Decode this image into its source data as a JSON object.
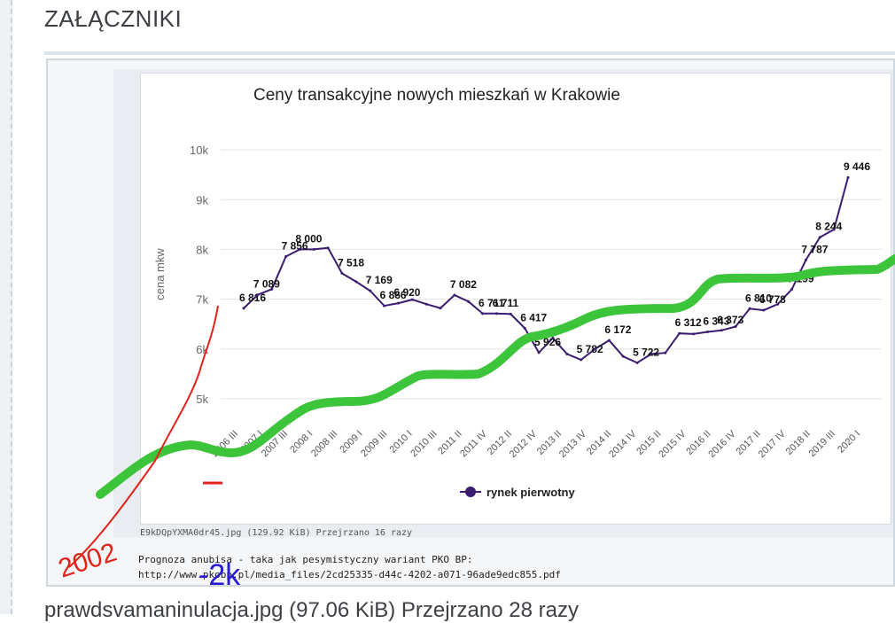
{
  "section_title": "ZAŁĄCZNIKI",
  "attachment": {
    "file_caption": "E9kDQpYXMA0dr45.jpg (129.92 KiB) Przejrzano 16 razy",
    "description_line1": "Prognoza anubisa - taka jak pesymistyczny wariant PKO BP:",
    "description_line2": "http://www.pkobp.pl/media_files/2cd25335-d44c-4202-a071-96ade9edc855.pdf"
  },
  "next_file_caption": "prawdsvamaninulacja.jpg (97.06 KiB) Przejrzano 28 razy",
  "annotations": {
    "year_note": "2002",
    "minus_note": "-2k",
    "red_color": "#e0231b",
    "green_color": "#3cc43a",
    "blue_color": "#2a1bd6"
  },
  "chart_data": {
    "type": "line",
    "title": "Ceny transakcyjne nowych mieszkań w Krakowie",
    "ylabel": "cena mkw",
    "xlabel": "",
    "ylim": [
      4500,
      10500
    ],
    "yticks": [
      5000,
      6000,
      7000,
      8000,
      9000,
      10000
    ],
    "ytick_labels": [
      "5k",
      "6k",
      "7k",
      "8k",
      "9k",
      "10k"
    ],
    "grid": true,
    "legend_position": "bottom-center",
    "line_color": "#3a1d6e",
    "x_tick_labels": [
      "2006 III",
      "2007 I",
      "2007 III",
      "2008 I",
      "2008 III",
      "2009 I",
      "2009 III",
      "2010 I",
      "2010 III",
      "2011 II",
      "2011 IV",
      "2012 II",
      "2012 IV",
      "2013 II",
      "2013 IV",
      "2014 II",
      "2014 IV",
      "2015 II",
      "2015 IV",
      "2016 II",
      "2016 IV",
      "2017 II",
      "2017 IV",
      "2018 II",
      "2019 III",
      "2020 I"
    ],
    "series": [
      {
        "name": "rynek pierwotny",
        "values": [
          6816,
          7089,
          7200,
          7856,
          8000,
          8000,
          8030,
          7518,
          7350,
          7169,
          6866,
          6920,
          6990,
          6900,
          6820,
          7082,
          6950,
          6711,
          6711,
          6700,
          6417,
          5926,
          6220,
          5900,
          5782,
          6000,
          6172,
          5850,
          5722,
          5900,
          5920,
          6312,
          6300,
          6343,
          6373,
          6450,
          6810,
          6778,
          6900,
          7199,
          7787,
          8244,
          8400,
          9446
        ],
        "data_labels": [
          "6 816",
          "7 089",
          "",
          "7 856",
          "8 000",
          "",
          "",
          "7 518",
          "",
          "7 169",
          "6 866",
          "6 920",
          "",
          "",
          "",
          "7 082",
          "",
          "6 711",
          "6 711",
          "",
          "6 417",
          "5 926",
          "",
          "",
          "5 782",
          "",
          "6 172",
          "",
          "5 722",
          "",
          "",
          "6 312",
          "",
          "6 343",
          "6 373",
          "",
          "6 810",
          "6 778",
          "",
          "7 199",
          "7 787",
          "8 244",
          "",
          "9 446"
        ]
      }
    ]
  }
}
